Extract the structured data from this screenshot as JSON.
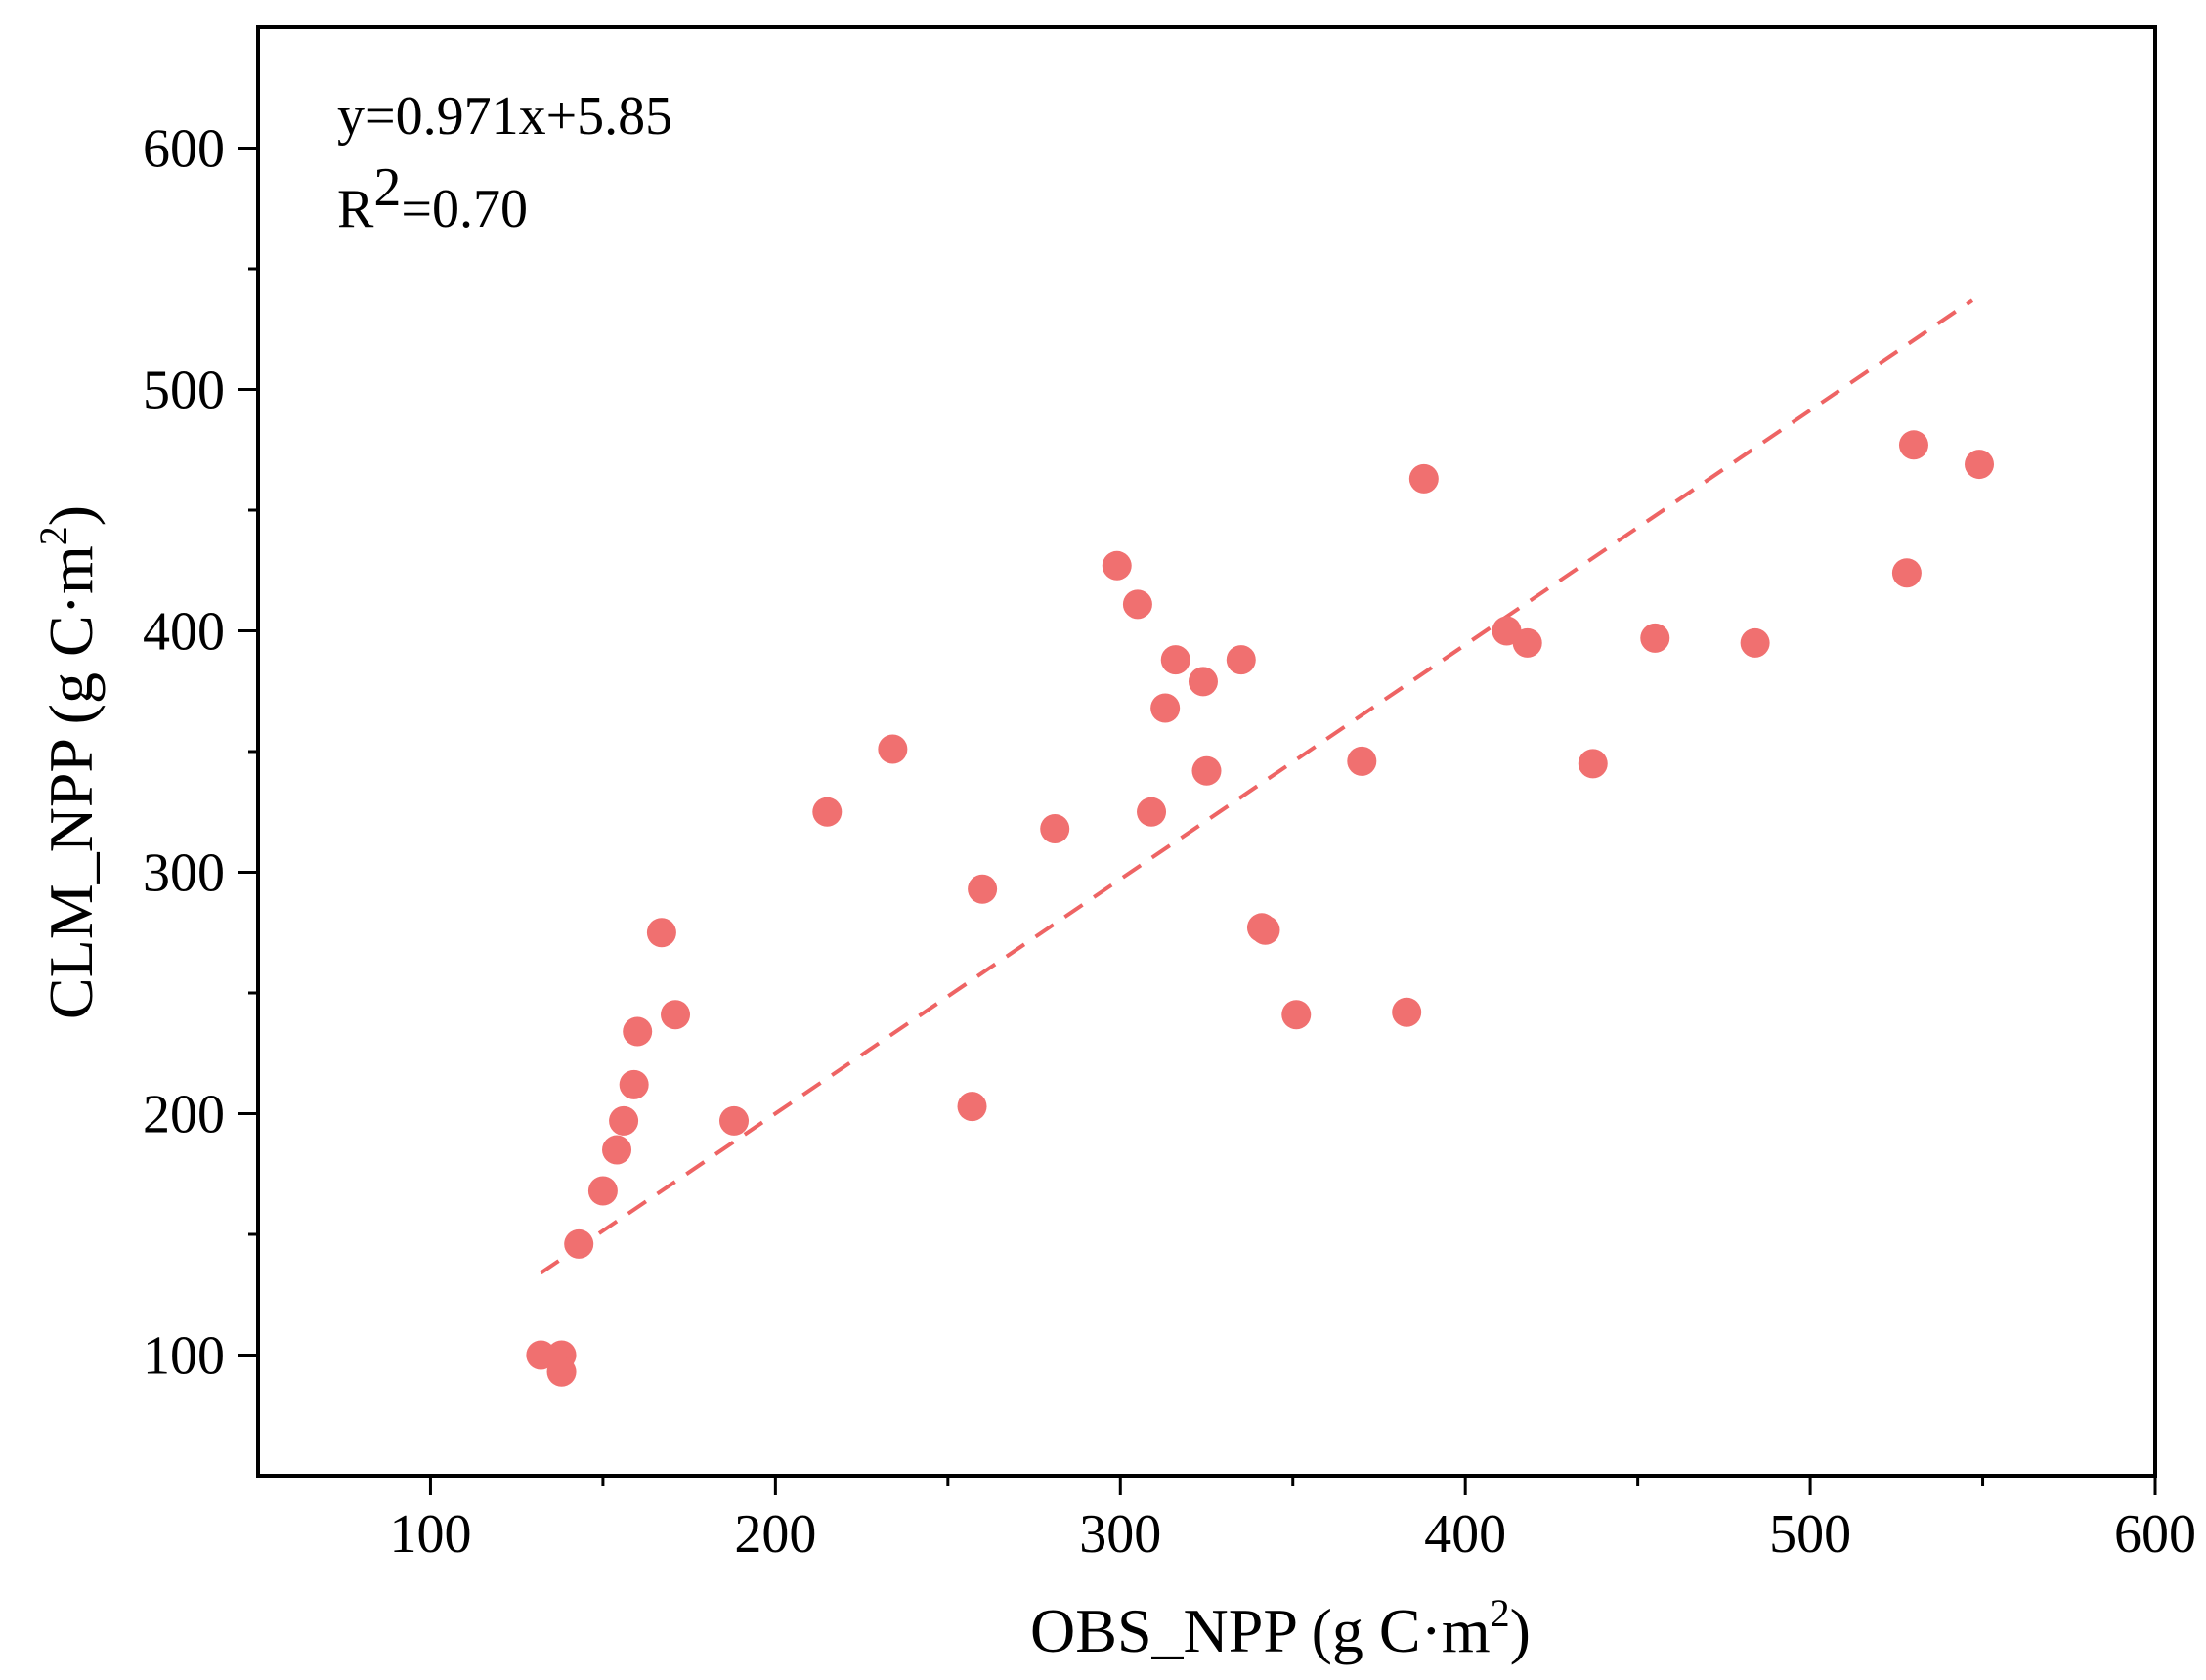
{
  "chart_data": {
    "type": "scatter",
    "xlabel": {
      "main": "OBS_NPP (g C·m",
      "sup": "2",
      "tail": ")"
    },
    "ylabel": {
      "main": "CLM_NPP (g C·m",
      "sup": "2",
      "tail": ")"
    },
    "xlim": [
      50,
      600
    ],
    "ylim": [
      50,
      650
    ],
    "xticks": [
      100,
      200,
      300,
      400,
      500,
      600
    ],
    "yticks": [
      100,
      200,
      300,
      400,
      500,
      600
    ],
    "xtick_labels": [
      "100",
      "200",
      "300",
      "400",
      "500",
      "600"
    ],
    "ytick_labels": [
      "100",
      "200",
      "300",
      "400",
      "500",
      "600"
    ],
    "grid": false,
    "point_color": "#f07070",
    "fit_color": "#ee6464",
    "fit": {
      "slope": 0.971,
      "intercept": 5.85,
      "x_range": [
        132,
        547
      ]
    },
    "annotation": {
      "equation": "y=0.971x+5.85",
      "r2_prefix": "R",
      "r2_sup": "2",
      "r2_value": "=0.70"
    },
    "points": [
      {
        "x": 132,
        "y": 100
      },
      {
        "x": 138,
        "y": 100
      },
      {
        "x": 138,
        "y": 93
      },
      {
        "x": 143,
        "y": 146
      },
      {
        "x": 150,
        "y": 168
      },
      {
        "x": 154,
        "y": 185
      },
      {
        "x": 156,
        "y": 197
      },
      {
        "x": 159,
        "y": 212
      },
      {
        "x": 160,
        "y": 234
      },
      {
        "x": 167,
        "y": 275
      },
      {
        "x": 171,
        "y": 241
      },
      {
        "x": 188,
        "y": 197
      },
      {
        "x": 215,
        "y": 325
      },
      {
        "x": 234,
        "y": 351
      },
      {
        "x": 257,
        "y": 203
      },
      {
        "x": 260,
        "y": 293
      },
      {
        "x": 281,
        "y": 318
      },
      {
        "x": 299,
        "y": 427
      },
      {
        "x": 305,
        "y": 411
      },
      {
        "x": 309,
        "y": 325
      },
      {
        "x": 313,
        "y": 368
      },
      {
        "x": 316,
        "y": 388
      },
      {
        "x": 324,
        "y": 379
      },
      {
        "x": 325,
        "y": 342
      },
      {
        "x": 335,
        "y": 388
      },
      {
        "x": 341,
        "y": 277
      },
      {
        "x": 342,
        "y": 276
      },
      {
        "x": 351,
        "y": 241
      },
      {
        "x": 370,
        "y": 346
      },
      {
        "x": 383,
        "y": 242
      },
      {
        "x": 388,
        "y": 463
      },
      {
        "x": 412,
        "y": 400
      },
      {
        "x": 418,
        "y": 395
      },
      {
        "x": 437,
        "y": 345
      },
      {
        "x": 455,
        "y": 397
      },
      {
        "x": 484,
        "y": 395
      },
      {
        "x": 528,
        "y": 424
      },
      {
        "x": 530,
        "y": 477
      },
      {
        "x": 549,
        "y": 469
      }
    ]
  }
}
